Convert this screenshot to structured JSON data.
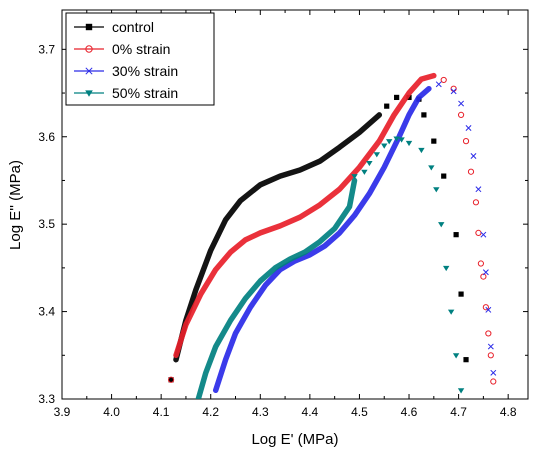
{
  "chart_data": {
    "type": "scatter",
    "xlabel": "Log E' (MPa)",
    "ylabel": "Log E'' (MPa)",
    "xlim": [
      3.9,
      4.84
    ],
    "ylim": [
      3.3,
      3.745
    ],
    "xticks": [
      "3.9",
      "4.0",
      "4.1",
      "4.2",
      "4.3",
      "4.4",
      "4.5",
      "4.6",
      "4.7",
      "4.8"
    ],
    "yticks": [
      "3.3",
      "3.4",
      "3.5",
      "3.6",
      "3.7"
    ],
    "grid": false,
    "legend_position": "top-left",
    "series": [
      {
        "name": "control",
        "color": "#000000",
        "marker": "square",
        "curve": [
          [
            4.13,
            3.345
          ],
          [
            4.15,
            3.39
          ],
          [
            4.17,
            3.425
          ],
          [
            4.2,
            3.47
          ],
          [
            4.23,
            3.505
          ],
          [
            4.26,
            3.527
          ],
          [
            4.3,
            3.545
          ],
          [
            4.34,
            3.555
          ],
          [
            4.38,
            3.562
          ],
          [
            4.42,
            3.572
          ],
          [
            4.46,
            3.588
          ],
          [
            4.5,
            3.605
          ],
          [
            4.54,
            3.625
          ]
        ],
        "points": [
          [
            4.12,
            3.322
          ],
          [
            4.555,
            3.635
          ],
          [
            4.575,
            3.645
          ],
          [
            4.6,
            3.645
          ],
          [
            4.62,
            3.643
          ],
          [
            4.63,
            3.625
          ],
          [
            4.65,
            3.595
          ],
          [
            4.67,
            3.555
          ],
          [
            4.695,
            3.488
          ],
          [
            4.705,
            3.42
          ],
          [
            4.715,
            3.345
          ]
        ]
      },
      {
        "name": "0% strain",
        "color": "#e8202a",
        "marker": "circle",
        "curve": [
          [
            4.13,
            3.35
          ],
          [
            4.15,
            3.385
          ],
          [
            4.18,
            3.42
          ],
          [
            4.21,
            3.448
          ],
          [
            4.24,
            3.468
          ],
          [
            4.27,
            3.482
          ],
          [
            4.3,
            3.49
          ],
          [
            4.34,
            3.498
          ],
          [
            4.38,
            3.508
          ],
          [
            4.42,
            3.522
          ],
          [
            4.46,
            3.54
          ],
          [
            4.5,
            3.565
          ],
          [
            4.54,
            3.595
          ],
          [
            4.57,
            3.625
          ],
          [
            4.6,
            3.65
          ],
          [
            4.625,
            3.666
          ],
          [
            4.65,
            3.67
          ]
        ],
        "points": [
          [
            4.12,
            3.322
          ],
          [
            4.67,
            3.665
          ],
          [
            4.69,
            3.655
          ],
          [
            4.705,
            3.625
          ],
          [
            4.715,
            3.595
          ],
          [
            4.725,
            3.56
          ],
          [
            4.735,
            3.525
          ],
          [
            4.74,
            3.49
          ],
          [
            4.745,
            3.455
          ],
          [
            4.75,
            3.44
          ],
          [
            4.755,
            3.405
          ],
          [
            4.76,
            3.375
          ],
          [
            4.765,
            3.35
          ],
          [
            4.77,
            3.32
          ]
        ]
      },
      {
        "name": "30% strain",
        "color": "#2a2ae8",
        "marker": "x",
        "curve": [
          [
            4.21,
            3.31
          ],
          [
            4.23,
            3.345
          ],
          [
            4.25,
            3.375
          ],
          [
            4.28,
            3.405
          ],
          [
            4.31,
            3.43
          ],
          [
            4.34,
            3.448
          ],
          [
            4.37,
            3.458
          ],
          [
            4.4,
            3.465
          ],
          [
            4.43,
            3.475
          ],
          [
            4.46,
            3.49
          ],
          [
            4.49,
            3.51
          ],
          [
            4.52,
            3.535
          ],
          [
            4.55,
            3.565
          ],
          [
            4.58,
            3.6
          ],
          [
            4.6,
            3.625
          ],
          [
            4.62,
            3.645
          ],
          [
            4.64,
            3.655
          ]
        ],
        "points": [
          [
            4.66,
            3.66
          ],
          [
            4.69,
            3.652
          ],
          [
            4.705,
            3.638
          ],
          [
            4.72,
            3.61
          ],
          [
            4.73,
            3.578
          ],
          [
            4.74,
            3.54
          ],
          [
            4.75,
            3.488
          ],
          [
            4.755,
            3.445
          ],
          [
            4.76,
            3.402
          ],
          [
            4.765,
            3.36
          ],
          [
            4.77,
            3.33
          ]
        ]
      },
      {
        "name": "50% strain",
        "color": "#008080",
        "marker": "triangle-down",
        "curve": [
          [
            4.175,
            3.3
          ],
          [
            4.19,
            3.33
          ],
          [
            4.21,
            3.36
          ],
          [
            4.24,
            3.39
          ],
          [
            4.27,
            3.415
          ],
          [
            4.3,
            3.435
          ],
          [
            4.33,
            3.45
          ],
          [
            4.36,
            3.46
          ],
          [
            4.39,
            3.468
          ],
          [
            4.42,
            3.48
          ],
          [
            4.45,
            3.495
          ],
          [
            4.48,
            3.52
          ],
          [
            4.49,
            3.55
          ]
        ],
        "points": [
          [
            4.49,
            3.555
          ],
          [
            4.51,
            3.56
          ],
          [
            4.52,
            3.57
          ],
          [
            4.535,
            3.58
          ],
          [
            4.55,
            3.59
          ],
          [
            4.56,
            3.595
          ],
          [
            4.575,
            3.598
          ],
          [
            4.585,
            3.597
          ],
          [
            4.6,
            3.593
          ],
          [
            4.625,
            3.585
          ],
          [
            4.645,
            3.565
          ],
          [
            4.655,
            3.54
          ],
          [
            4.665,
            3.5
          ],
          [
            4.675,
            3.45
          ],
          [
            4.685,
            3.4
          ],
          [
            4.695,
            3.35
          ],
          [
            4.705,
            3.31
          ]
        ]
      }
    ]
  }
}
